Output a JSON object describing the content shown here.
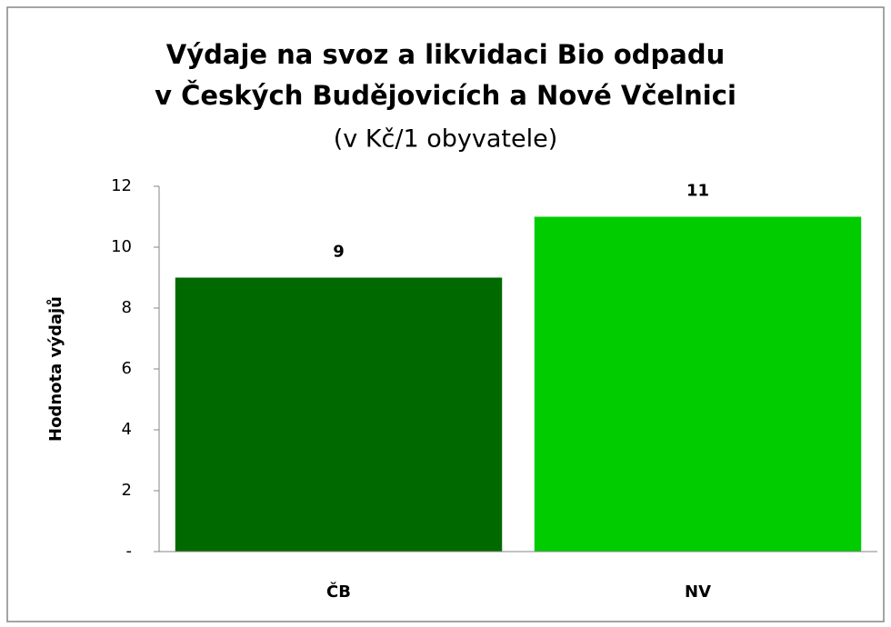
{
  "chart_data": {
    "type": "bar",
    "title": [
      "Výdaje na svoz a likvidaci Bio odpadu",
      "v Českých Budějovicích a Nové Včelnici"
    ],
    "subtitle": "(v Kč/1 obyvatele)",
    "ylabel": "Hodnota výdajů",
    "categories": [
      "ČB",
      "NV"
    ],
    "values": [
      9,
      11
    ],
    "colors": [
      "#006a00",
      "#00cc00"
    ],
    "ylim": [
      0,
      12
    ],
    "yticks": [
      {
        "value": 0,
        "label": "-"
      },
      2,
      4,
      6,
      8,
      10,
      12
    ],
    "grid": false
  }
}
